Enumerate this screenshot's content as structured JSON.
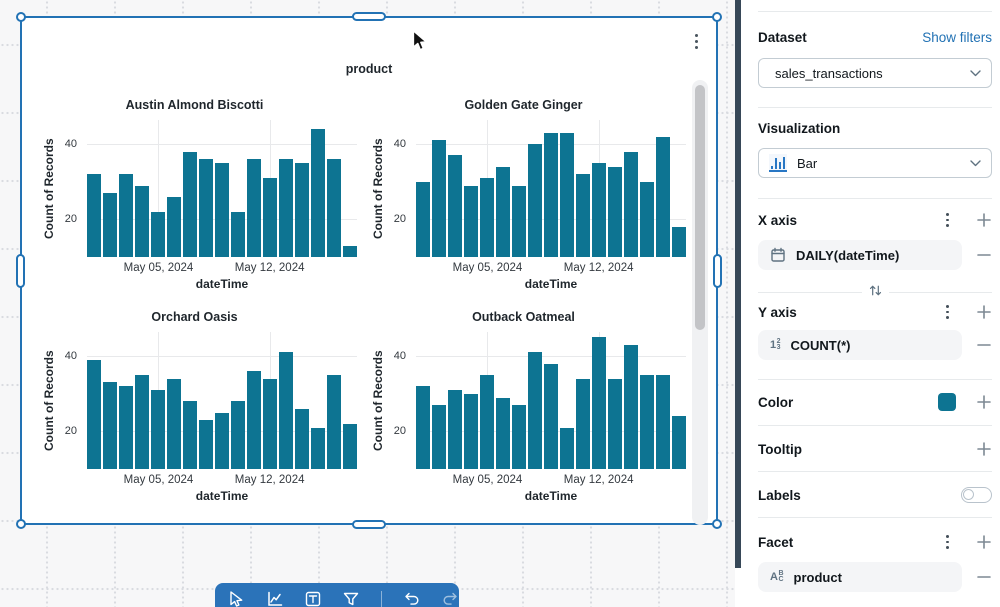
{
  "chart_data": {
    "type": "bar",
    "title": "product",
    "xlabel": "dateTime",
    "ylabel": "Count of Records",
    "yticks": [
      20,
      40
    ],
    "y_display_range": [
      10,
      46.4
    ],
    "grid": true,
    "bar_color": "#0d7492",
    "xticks": [
      {
        "label": "May 05, 2024",
        "bar_index": 4
      },
      {
        "label": "May 12, 2024",
        "bar_index": 11
      }
    ],
    "facets": [
      {
        "name": "Austin Almond Biscotti",
        "values": [
          32,
          27,
          32,
          29,
          22,
          26,
          38,
          36,
          35,
          22,
          36,
          31,
          36,
          35,
          44,
          36,
          13
        ]
      },
      {
        "name": "Golden Gate Ginger",
        "values": [
          30,
          41,
          37,
          29,
          31,
          34,
          29,
          40,
          43,
          43,
          32,
          35,
          34,
          38,
          30,
          42,
          18
        ]
      },
      {
        "name": "Orchard Oasis",
        "values": [
          39,
          33,
          32,
          35,
          31,
          34,
          28,
          23,
          25,
          28,
          36,
          34,
          41,
          26,
          21,
          35,
          22
        ]
      },
      {
        "name": "Outback Oatmeal",
        "values": [
          32,
          27,
          31,
          30,
          35,
          29,
          27,
          41,
          38,
          21,
          34,
          45,
          34,
          43,
          35,
          35,
          24
        ]
      }
    ]
  },
  "panel": {
    "dataset_label": "Dataset",
    "show_filters_link": "Show filters",
    "dataset_value": "sales_transactions",
    "visualization_label": "Visualization",
    "visualization_value": "Bar",
    "x_axis_label": "X axis",
    "x_axis_field": "DAILY(dateTime)",
    "x_axis_field_type_icon": "calendar-icon",
    "y_axis_label": "Y axis",
    "y_axis_field": "COUNT(*)",
    "y_axis_field_type_icon": "number-type-icon",
    "color_label": "Color",
    "color_value": "#0d7492",
    "tooltip_label": "Tooltip",
    "labels_label": "Labels",
    "labels_toggle_state": "off",
    "facet_label": "Facet",
    "facet_field": "product",
    "facet_field_type_icon": "string-type-icon"
  },
  "toolbar": {
    "tools": [
      "select",
      "add-visualization",
      "add-text",
      "add-filter",
      "undo",
      "redo"
    ]
  }
}
